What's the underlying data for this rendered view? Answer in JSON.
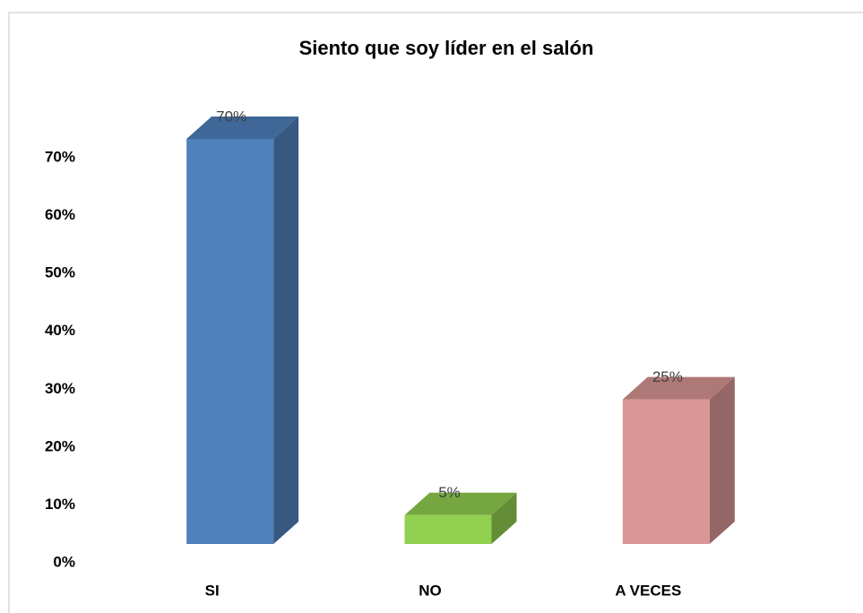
{
  "chart_data": {
    "type": "bar3d",
    "title": "Siento que soy líder en el salón",
    "categories": [
      "SI",
      "NO",
      "A VECES"
    ],
    "values": [
      70,
      5,
      25
    ],
    "value_labels": [
      "70%",
      "5%",
      "25%"
    ],
    "colors": [
      "#4f81bd",
      "#92d050",
      "#d99694"
    ],
    "ylim": [
      0,
      70
    ],
    "yticks": [
      {
        "value": 0,
        "label": "0%"
      },
      {
        "value": 10,
        "label": "10%"
      },
      {
        "value": 20,
        "label": "20%"
      },
      {
        "value": 30,
        "label": "30%"
      },
      {
        "value": 40,
        "label": "40%"
      },
      {
        "value": 50,
        "label": "50%"
      },
      {
        "value": 60,
        "label": "60%"
      },
      {
        "value": 70,
        "label": "70%"
      }
    ]
  }
}
